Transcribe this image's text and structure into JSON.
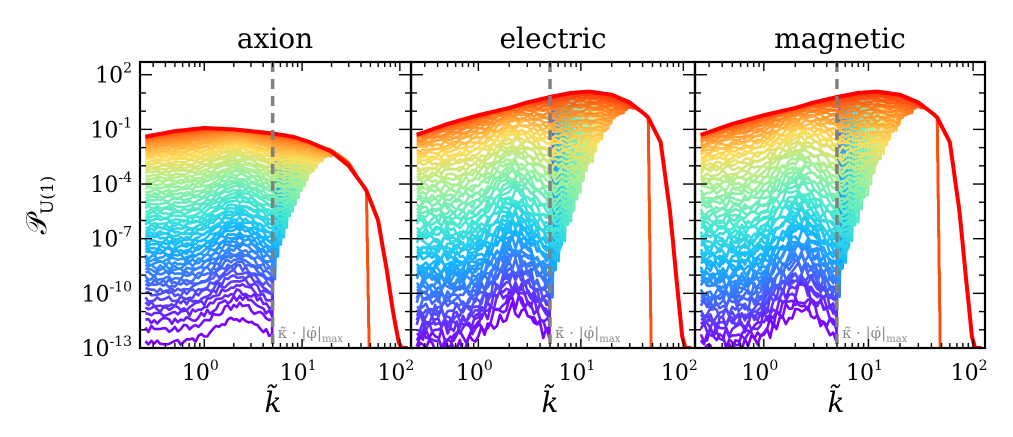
{
  "figure": {
    "ylabel": "𝒫",
    "ylabel_sub": "U(1)",
    "xlabel": "k̃",
    "x_ticks": [
      {
        "exp": "0"
      },
      {
        "exp": "1"
      },
      {
        "exp": "2"
      }
    ],
    "y_ticks": [
      {
        "exp": "2"
      },
      {
        "exp": "-1"
      },
      {
        "exp": "-4"
      },
      {
        "exp": "-7"
      },
      {
        "exp": "-10"
      },
      {
        "exp": "-13"
      }
    ],
    "tick_base": "10",
    "annotation": "κ̃ · |φ̇|",
    "annotation_sub": "max",
    "colormap": [
      "#7b00ff",
      "#3f6bff",
      "#12b6ff",
      "#3fe6d6",
      "#9cf29c",
      "#ffdc5a",
      "#ff7a1e",
      "#ff0000"
    ]
  },
  "chart_data": [
    {
      "type": "line",
      "title": "axion",
      "xscale": "log",
      "yscale": "log",
      "xlim": [
        0.22,
        130
      ],
      "ylim": [
        1e-13,
        500
      ],
      "vline": {
        "x": 5,
        "style": "dashed"
      },
      "cutoff_k": 48,
      "final_spectrum": {
        "x": [
          0.25,
          0.5,
          1,
          2,
          3,
          5,
          8,
          12,
          20,
          30,
          45,
          60,
          75,
          85,
          100
        ],
        "y": [
          0.04,
          0.08,
          0.12,
          0.1,
          0.08,
          0.06,
          0.04,
          0.02,
          0.006,
          0.001,
          5e-05,
          1e-06,
          1e-09,
          1e-11,
          1e-13
        ]
      }
    },
    {
      "type": "line",
      "title": "electric",
      "xscale": "log",
      "yscale": "log",
      "xlim": [
        0.22,
        130
      ],
      "ylim": [
        1e-13,
        500
      ],
      "vline": {
        "x": 5,
        "style": "dashed"
      },
      "cutoff_k": 48,
      "final_spectrum": {
        "x": [
          0.25,
          0.5,
          1,
          2,
          3,
          5,
          8,
          12,
          20,
          30,
          45,
          60,
          75,
          85,
          100
        ],
        "y": [
          0.05,
          0.2,
          0.6,
          1.5,
          3,
          6,
          10,
          12,
          8,
          3,
          0.5,
          0.02,
          2e-06,
          1e-09,
          1e-13
        ]
      }
    },
    {
      "type": "line",
      "title": "magnetic",
      "xscale": "log",
      "yscale": "log",
      "xlim": [
        0.22,
        130
      ],
      "ylim": [
        1e-13,
        500
      ],
      "vline": {
        "x": 5,
        "style": "dashed"
      },
      "cutoff_k": 48,
      "final_spectrum": {
        "x": [
          0.25,
          0.5,
          1,
          2,
          3,
          5,
          8,
          12,
          20,
          30,
          45,
          60,
          75,
          85,
          100
        ],
        "y": [
          0.05,
          0.2,
          0.6,
          1.5,
          3,
          6,
          10,
          12,
          8,
          3,
          0.5,
          0.02,
          2e-06,
          1e-09,
          1e-13
        ]
      }
    }
  ]
}
